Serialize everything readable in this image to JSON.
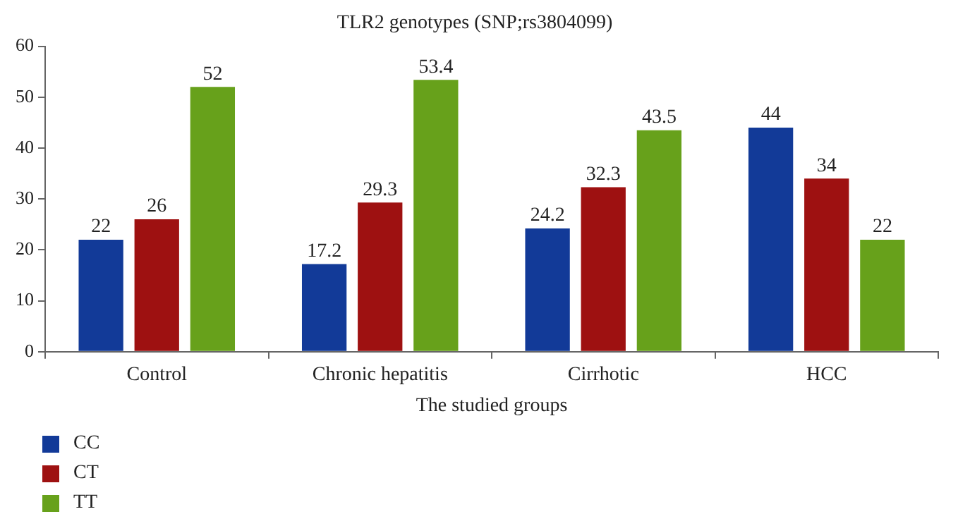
{
  "chart_data": {
    "type": "bar",
    "title": "TLR2 genotypes (SNP;rs3804099)",
    "xlabel": "The studied groups",
    "categories": [
      "Control",
      "Chronic hepatitis",
      "Cirrhotic",
      "HCC"
    ],
    "series": [
      {
        "name": "CC",
        "color": "#123a98",
        "values": [
          22,
          17.2,
          24.2,
          44
        ]
      },
      {
        "name": "CT",
        "color": "#9e1111",
        "values": [
          26,
          29.3,
          32.3,
          34
        ]
      },
      {
        "name": "TT",
        "color": "#67a11b",
        "values": [
          52,
          53.4,
          43.5,
          22
        ]
      }
    ],
    "ylim": [
      0,
      60
    ],
    "yticks": [
      0,
      10,
      20,
      30,
      40,
      50,
      60
    ],
    "grid": false,
    "legend": "bottom left",
    "data_labels": true
  }
}
